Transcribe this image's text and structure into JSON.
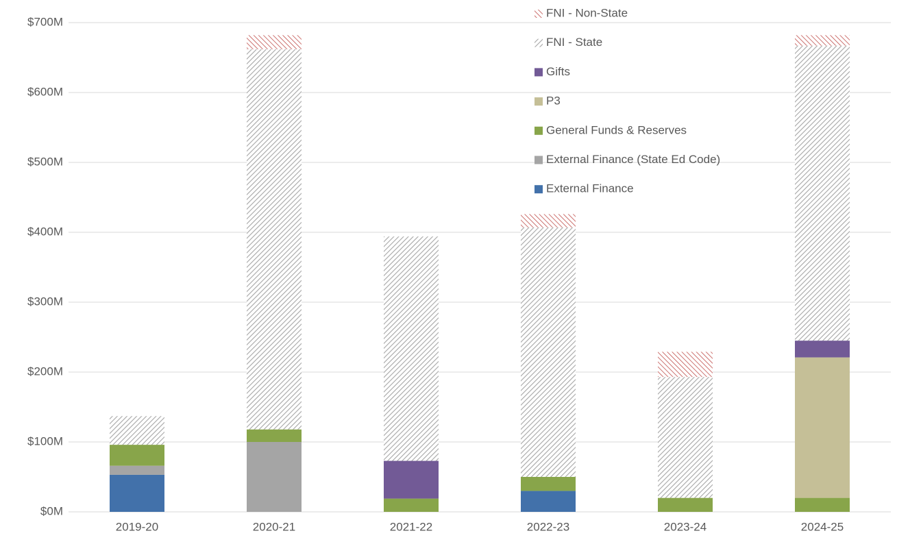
{
  "chart_data": {
    "type": "stacked_bar",
    "categories": [
      "2019-20",
      "2020-21",
      "2021-22",
      "2022-23",
      "2023-24",
      "2024-25"
    ],
    "series": [
      {
        "name": "External Finance",
        "color": "#4271aa",
        "values": [
          53,
          0,
          0,
          30,
          0,
          0
        ]
      },
      {
        "name": "External Finance (State Ed Code)",
        "color": "#a5a5a5",
        "values": [
          13,
          100,
          0,
          0,
          0,
          0
        ]
      },
      {
        "name": "General Funds & Reserves",
        "color": "#88a54a",
        "values": [
          30,
          18,
          19,
          20,
          20,
          20
        ]
      },
      {
        "name": "P3",
        "color": "#c5bf97",
        "values": [
          0,
          0,
          0,
          0,
          0,
          201
        ]
      },
      {
        "name": "Gifts",
        "color": "#725a96",
        "values": [
          0,
          0,
          54,
          0,
          0,
          24
        ]
      },
      {
        "name": "FNI - State",
        "color": "#a6a6a6",
        "pattern": "hatch",
        "values": [
          41,
          544,
          321,
          357,
          173,
          422
        ]
      },
      {
        "name": "FNI - Non-State",
        "color": "#c0504d",
        "pattern": "hatch",
        "values": [
          0,
          20,
          0,
          19,
          36,
          15
        ]
      }
    ],
    "ylim": [
      0,
      700
    ],
    "yticks": [
      {
        "value": 0,
        "label": "$0M"
      },
      {
        "value": 100,
        "label": "$100M"
      },
      {
        "value": 200,
        "label": "$200M"
      },
      {
        "value": 300,
        "label": "$300M"
      },
      {
        "value": 400,
        "label": "$400M"
      },
      {
        "value": 500,
        "label": "$500M"
      },
      {
        "value": 600,
        "label": "$600M"
      },
      {
        "value": 700,
        "label": "$700M"
      }
    ],
    "grid": true,
    "legend": "top-right"
  }
}
